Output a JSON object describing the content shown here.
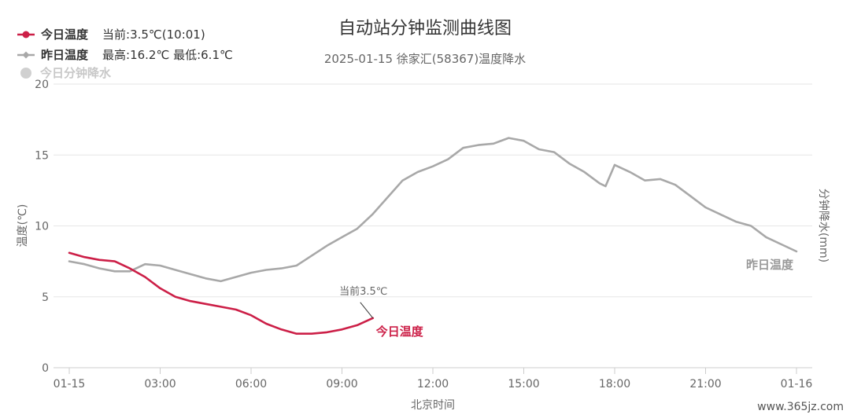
{
  "chart_data": {
    "type": "line",
    "title": "自动站分钟监测曲线图",
    "subtitle": "2025-01-15 徐家汇(58367)温度降水",
    "xlabel": "北京时间",
    "ylabel": "温度(℃)",
    "y2label": "分钟降水(mm)",
    "ylim": [
      0,
      20
    ],
    "yticks": [
      "0",
      "5",
      "10",
      "15",
      "20"
    ],
    "xticks": [
      {
        "h": 0,
        "label": "01-15"
      },
      {
        "h": 3,
        "label": "03:00"
      },
      {
        "h": 6,
        "label": "06:00"
      },
      {
        "h": 9,
        "label": "09:00"
      },
      {
        "h": 12,
        "label": "12:00"
      },
      {
        "h": 15,
        "label": "15:00"
      },
      {
        "h": 18,
        "label": "18:00"
      },
      {
        "h": 21,
        "label": "21:00"
      },
      {
        "h": 24,
        "label": "01-16"
      }
    ],
    "grid": true,
    "legend_position": "top-left",
    "series": [
      {
        "name": "今日温度",
        "color": "#cc1f47",
        "x": [
          0,
          0.5,
          1,
          1.5,
          2,
          2.5,
          3,
          3.5,
          4,
          4.5,
          5,
          5.5,
          6,
          6.5,
          7,
          7.5,
          8,
          8.5,
          9,
          9.5,
          10.02
        ],
        "y": [
          8.1,
          7.8,
          7.6,
          7.5,
          7.0,
          6.4,
          5.6,
          5.0,
          4.7,
          4.5,
          4.3,
          4.1,
          3.7,
          3.1,
          2.7,
          2.4,
          2.4,
          2.5,
          2.7,
          3.0,
          3.5
        ]
      },
      {
        "name": "昨日温度",
        "color": "#a8a8a8",
        "x": [
          0,
          0.5,
          1,
          1.5,
          2,
          2.5,
          3,
          3.5,
          4,
          4.5,
          5,
          5.5,
          6,
          6.5,
          7,
          7.5,
          8,
          8.5,
          9,
          9.5,
          10,
          10.5,
          11,
          11.5,
          12,
          12.5,
          13,
          13.5,
          14,
          14.5,
          15,
          15.5,
          16,
          16.5,
          17,
          17.5,
          17.7,
          18,
          18.5,
          19,
          19.5,
          20,
          20.5,
          21,
          21.5,
          22,
          22.5,
          23,
          23.5,
          24
        ],
        "y": [
          7.5,
          7.3,
          7.0,
          6.8,
          6.8,
          7.3,
          7.2,
          6.9,
          6.6,
          6.3,
          6.1,
          6.4,
          6.7,
          6.9,
          7.0,
          7.2,
          7.9,
          8.6,
          9.2,
          9.8,
          10.8,
          12.0,
          13.2,
          13.8,
          14.2,
          14.7,
          15.5,
          15.7,
          15.8,
          16.2,
          16.0,
          15.4,
          15.2,
          14.4,
          13.8,
          13.0,
          12.8,
          14.3,
          13.8,
          13.2,
          13.3,
          12.9,
          12.1,
          11.3,
          10.8,
          10.3,
          10.0,
          9.2,
          8.7,
          8.2
        ]
      },
      {
        "name": "今日分钟降水",
        "color": "#c8c8c8",
        "x": [],
        "y": []
      }
    ],
    "legend_info": [
      "当前:3.5℃(10:01)",
      "最高:16.2℃ 最低:6.1℃",
      ""
    ],
    "annotations": {
      "current": "当前3.5℃",
      "today_end_label": "今日温度",
      "yesterday_end_label": "昨日温度"
    }
  },
  "watermark": "www.365jz.com"
}
